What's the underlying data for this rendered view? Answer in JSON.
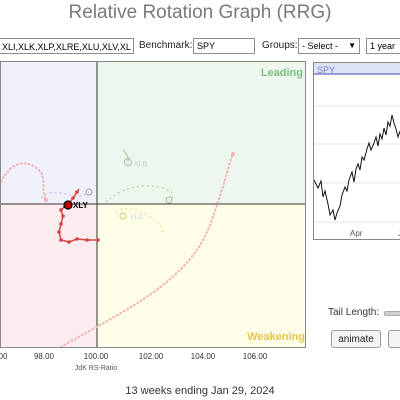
{
  "title": "Relative Rotation Graph (RRG)",
  "toolbar": {
    "symbols_value": "XLI,XLK,XLP,XLRE,XLU,XLV,XL",
    "benchmark_label": "Benchmark:",
    "benchmark_value": "SPY",
    "groups_label": "Groups:",
    "groups_value": "- Select -",
    "period_value": "1 year"
  },
  "rrg": {
    "quadrant_leading": "Leading",
    "quadrant_weakening": "Weakening",
    "x_axis_label": "JdK RS-Ratio",
    "x_ticks": [
      "00",
      "98.00",
      "100.00",
      "102.00",
      "104.00",
      "106.00"
    ],
    "highlighted_symbol": "XLY",
    "colors": {
      "leading_bg": "#eef7ee",
      "weakening_bg": "#fefde8",
      "lagging_bg": "#fcecef",
      "improving_bg": "#f0f0fa",
      "leading_text": "#7fbf7f",
      "weakening_text": "#e3c64a",
      "xly_tail": "#d44444"
    }
  },
  "price_panel": {
    "symbol": "SPY",
    "month_labels": [
      "Apr",
      "J"
    ]
  },
  "controls": {
    "tail_length_label": "Tail Length:",
    "animate_label": "animate"
  },
  "footer": "13 weeks ending Jan 29, 2024"
}
